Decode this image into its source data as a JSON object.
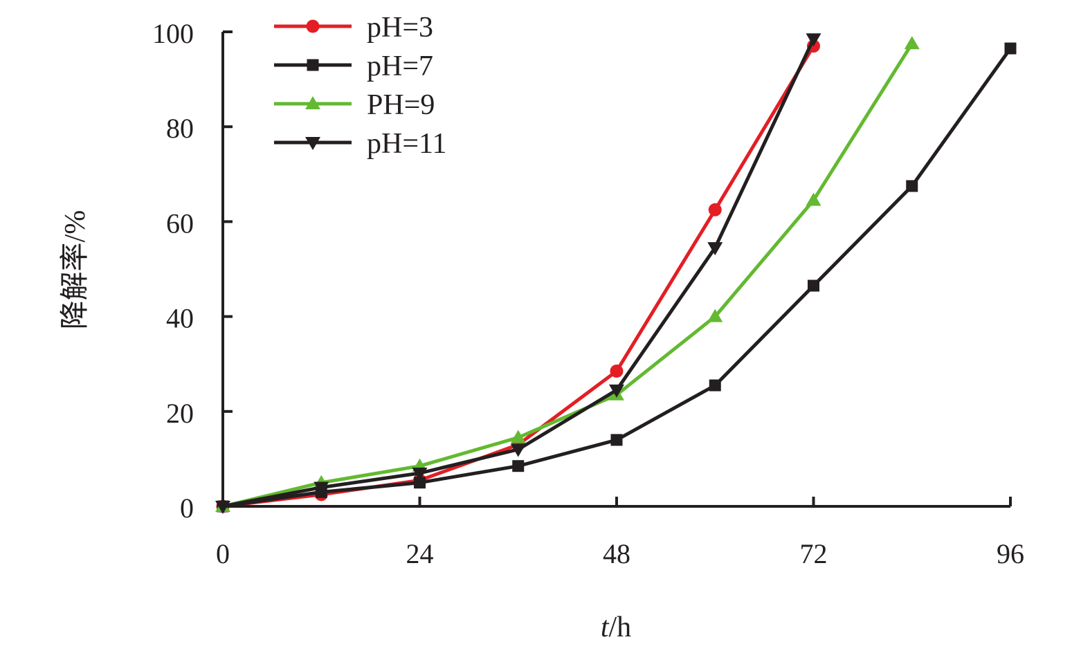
{
  "chart_data": {
    "type": "line",
    "title": "",
    "xlabel": {
      "var": "t",
      "unit": "/h"
    },
    "ylabel": "降解率/%",
    "xlim": [
      0,
      96
    ],
    "ylim": [
      0,
      100
    ],
    "x_ticks": [
      0,
      24,
      48,
      72,
      96
    ],
    "y_ticks": [
      0,
      20,
      40,
      60,
      80,
      100
    ],
    "grid": false,
    "legend_position": "top-left",
    "series": [
      {
        "name": "pH=3",
        "color": "#e31e25",
        "marker": "circle",
        "x": [
          0,
          12,
          24,
          36,
          48,
          60,
          72
        ],
        "y": [
          0,
          2.5,
          5.5,
          13,
          28.5,
          62.5,
          97
        ]
      },
      {
        "name": "pH=7",
        "color": "#231f20",
        "marker": "square",
        "x": [
          0,
          12,
          24,
          36,
          48,
          60,
          72,
          84,
          96
        ],
        "y": [
          0,
          3,
          5,
          8.5,
          14,
          25.5,
          46.5,
          67.5,
          96.5
        ]
      },
      {
        "name": "PH=9",
        "color": "#63b931",
        "marker": "triangle-up",
        "x": [
          0,
          12,
          24,
          36,
          48,
          60,
          72,
          84
        ],
        "y": [
          0,
          5,
          8.5,
          14.5,
          23.5,
          40,
          64.5,
          97.5
        ]
      },
      {
        "name": "pH=11",
        "color": "#231f20",
        "marker": "triangle-down",
        "x": [
          0,
          12,
          24,
          36,
          48,
          60,
          72
        ],
        "y": [
          0,
          4,
          7,
          12,
          24.5,
          54.5,
          98.5
        ]
      }
    ]
  }
}
